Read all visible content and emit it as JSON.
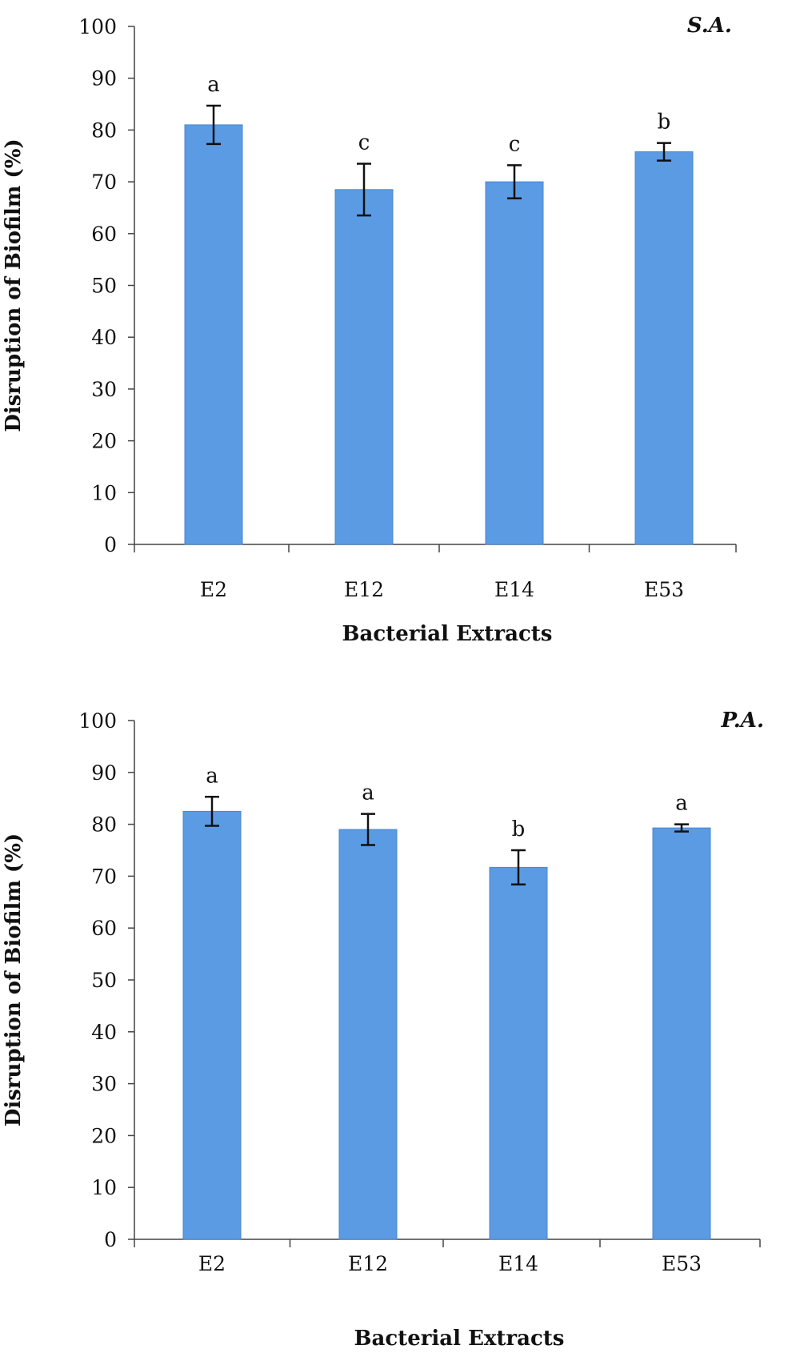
{
  "chart_data": [
    {
      "type": "bar",
      "title": "S.A.",
      "xlabel": "Bacterial Extracts",
      "ylabel": "Disruption of Biofilm (%)",
      "ylim": [
        0,
        100
      ],
      "yticks": [
        0,
        10,
        20,
        30,
        40,
        50,
        60,
        70,
        80,
        90,
        100
      ],
      "categories": [
        "E2",
        "E12",
        "E14",
        "E53"
      ],
      "values": [
        81,
        68.5,
        70,
        75.8
      ],
      "errors": [
        3.7,
        5,
        3.2,
        1.7
      ],
      "labels": [
        "a",
        "c",
        "c",
        "b"
      ],
      "grid": false,
      "color": "#5b9be4"
    },
    {
      "type": "bar",
      "title": "P.A.",
      "xlabel": "Bacterial Extracts",
      "ylabel": "Disruption of Biofilm (%)",
      "ylim": [
        0,
        100
      ],
      "yticks": [
        0,
        10,
        20,
        30,
        40,
        50,
        60,
        70,
        80,
        90,
        100
      ],
      "categories": [
        "E2",
        "E12",
        "E14",
        "E53"
      ],
      "values": [
        82.5,
        79,
        71.7,
        79.3
      ],
      "errors": [
        2.8,
        3,
        3.3,
        0.7
      ],
      "labels": [
        "a",
        "a",
        "b",
        "a"
      ],
      "grid": false,
      "color": "#5b9be4"
    }
  ]
}
